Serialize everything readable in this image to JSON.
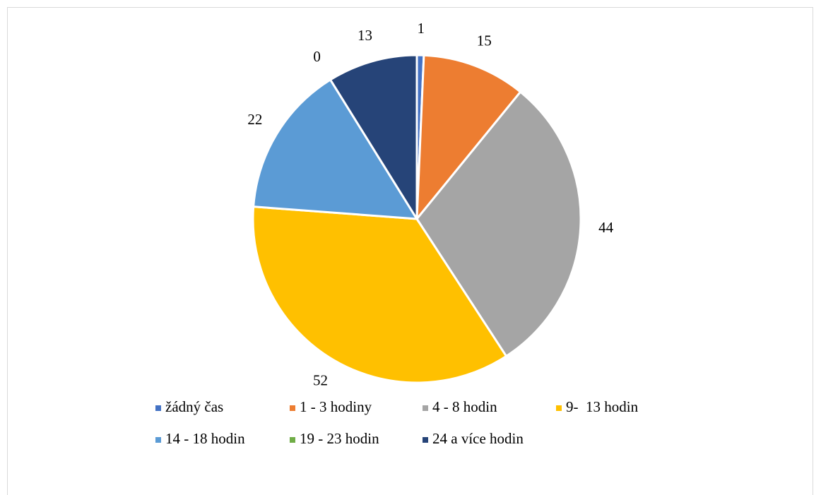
{
  "chart_data": {
    "type": "pie",
    "categories": [
      "žádný čas",
      "1 - 3 hodiny",
      "4 - 8 hodin",
      "9-  13 hodin",
      "14 - 18 hodin",
      "19 - 23 hodin",
      "24 a více hodin"
    ],
    "values": [
      1,
      15,
      44,
      52,
      22,
      0,
      13
    ],
    "colors": [
      "#4472c4",
      "#ed7d31",
      "#a5a5a5",
      "#ffc000",
      "#5b9bd5",
      "#70ad47",
      "#264478"
    ],
    "legend": "bottom"
  }
}
